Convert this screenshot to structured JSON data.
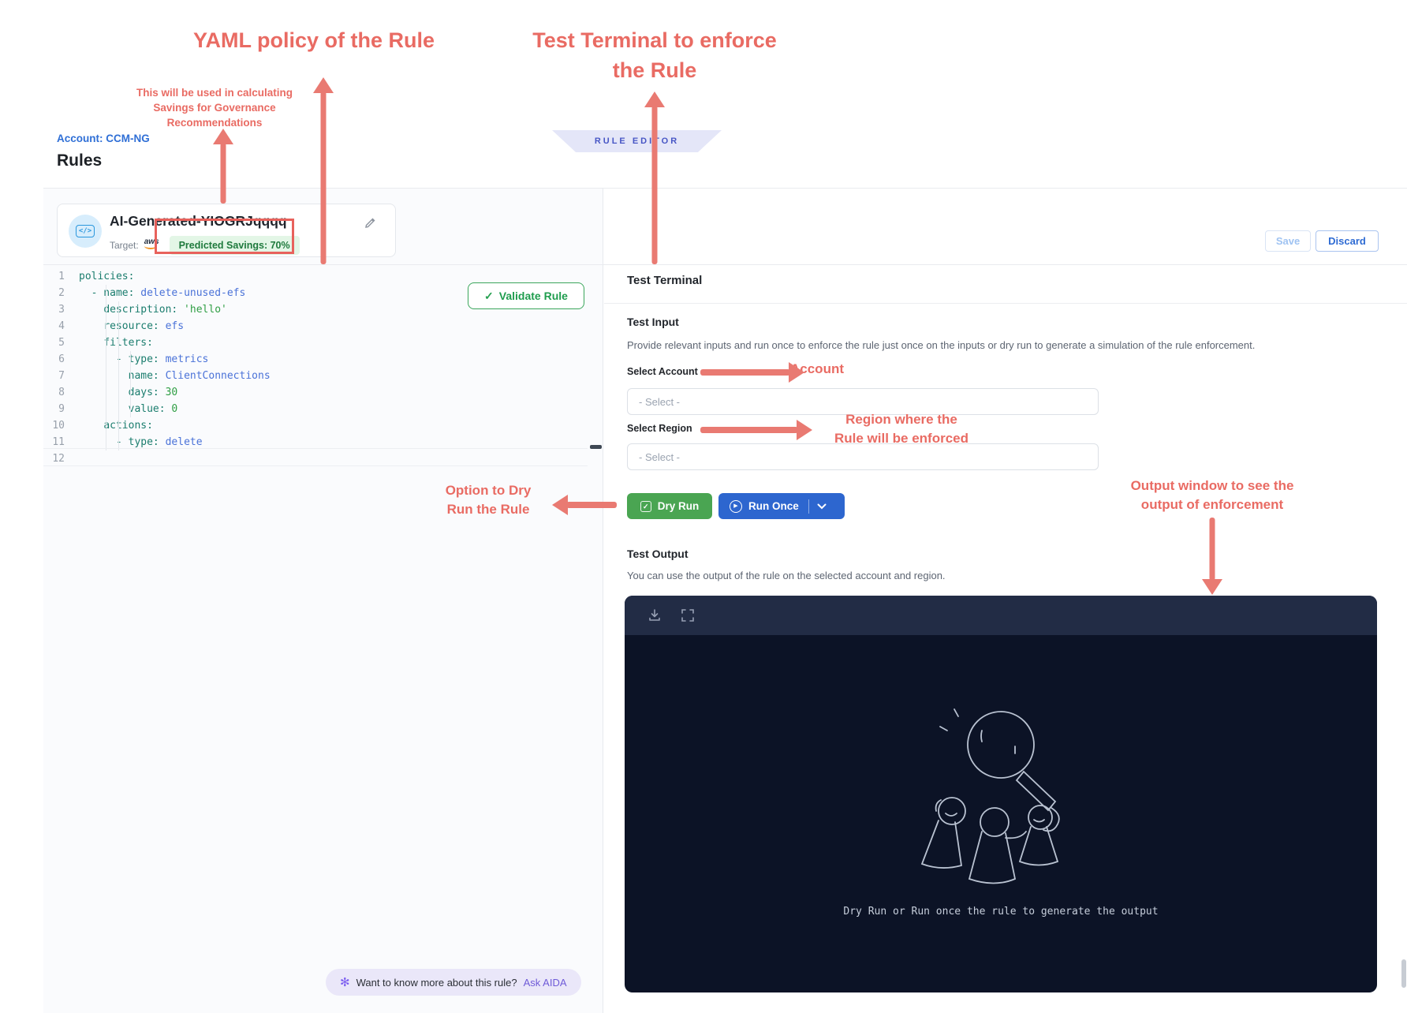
{
  "header": {
    "breadcrumb": "Account: CCM-NG",
    "title": "Rules",
    "banner": "RULE EDITOR"
  },
  "rule_card": {
    "name": "AI-Generated-YIOGRJqqqq",
    "target_label": "Target:",
    "provider": "aws",
    "savings": "Predicted Savings: 70%"
  },
  "toolbar": {
    "save": "Save",
    "discard": "Discard"
  },
  "editor": {
    "validate": "Validate Rule",
    "lines": [
      {
        "n": 1,
        "tokens": [
          {
            "c": "key",
            "t": "policies:"
          }
        ]
      },
      {
        "n": 2,
        "tokens": [
          {
            "c": "ws",
            "t": "  "
          },
          {
            "c": "key",
            "t": "- name:"
          },
          {
            "c": "id",
            "t": " delete-unused-efs"
          }
        ]
      },
      {
        "n": 3,
        "tokens": [
          {
            "c": "ws",
            "t": "    "
          },
          {
            "c": "key",
            "t": "description:"
          },
          {
            "c": "str",
            "t": " 'hello'"
          }
        ]
      },
      {
        "n": 4,
        "tokens": [
          {
            "c": "ws",
            "t": "    "
          },
          {
            "c": "key",
            "t": "resource:"
          },
          {
            "c": "id",
            "t": " efs"
          }
        ]
      },
      {
        "n": 5,
        "tokens": [
          {
            "c": "ws",
            "t": "    "
          },
          {
            "c": "key",
            "t": "filters:"
          }
        ]
      },
      {
        "n": 6,
        "tokens": [
          {
            "c": "ws",
            "t": "      "
          },
          {
            "c": "key",
            "t": "- type:"
          },
          {
            "c": "id",
            "t": " metrics"
          }
        ]
      },
      {
        "n": 7,
        "tokens": [
          {
            "c": "ws",
            "t": "        "
          },
          {
            "c": "key",
            "t": "name:"
          },
          {
            "c": "id",
            "t": " ClientConnections"
          }
        ]
      },
      {
        "n": 8,
        "tokens": [
          {
            "c": "ws",
            "t": "        "
          },
          {
            "c": "key",
            "t": "days:"
          },
          {
            "c": "num",
            "t": " 30"
          }
        ]
      },
      {
        "n": 9,
        "tokens": [
          {
            "c": "ws",
            "t": "        "
          },
          {
            "c": "key",
            "t": "value:"
          },
          {
            "c": "num",
            "t": " 0"
          }
        ]
      },
      {
        "n": 10,
        "tokens": [
          {
            "c": "ws",
            "t": "    "
          },
          {
            "c": "key",
            "t": "actions:"
          }
        ]
      },
      {
        "n": 11,
        "tokens": [
          {
            "c": "ws",
            "t": "      "
          },
          {
            "c": "key",
            "t": "- type:"
          },
          {
            "c": "id",
            "t": " delete"
          }
        ]
      },
      {
        "n": 12,
        "tokens": []
      }
    ]
  },
  "test_panel": {
    "title": "Test Terminal",
    "input_title": "Test Input",
    "input_desc": "Provide relevant inputs and run once to enforce the rule just once on the inputs or dry run to generate a simulation of the rule enforcement.",
    "account_label": "Select Account",
    "account_placeholder": "- Select -",
    "region_label": "Select Region",
    "region_placeholder": "- Select -",
    "dry_run": "Dry Run",
    "run_once": "Run Once",
    "output_title": "Test Output",
    "output_desc": "You can use the output of the rule on the selected account and region.",
    "terminal_message": "Dry Run or Run once the rule to generate the output"
  },
  "aida": {
    "question": "Want to know more about this rule?",
    "link": "Ask AIDA"
  },
  "annotations": {
    "yaml_policy": "YAML policy of the Rule",
    "test_terminal_line1": "Test Terminal to enforce",
    "test_terminal_line2": "the Rule",
    "savings_line1": "This will be used in calculating",
    "savings_line2": "Savings for Governance",
    "savings_line3": "Recommendations",
    "account": "Account",
    "region_line1": "Region where the",
    "region_line2": "Rule will be enforced",
    "dry_run_line1": "Option to Dry",
    "dry_run_line2": "Run the Rule",
    "output_line1": "Output window to see the",
    "output_line2": "output of enforcement"
  },
  "colors": {
    "annotation_red": "#e96b63",
    "primary_blue": "#2d66cf",
    "success_green": "#4aa552",
    "badge_green_bg": "#e3f6e6",
    "badge_green_text": "#1f7a3d",
    "terminal_header": "#222c45",
    "terminal_body": "#0c1326",
    "aida_purple": "#6f5bd8"
  }
}
